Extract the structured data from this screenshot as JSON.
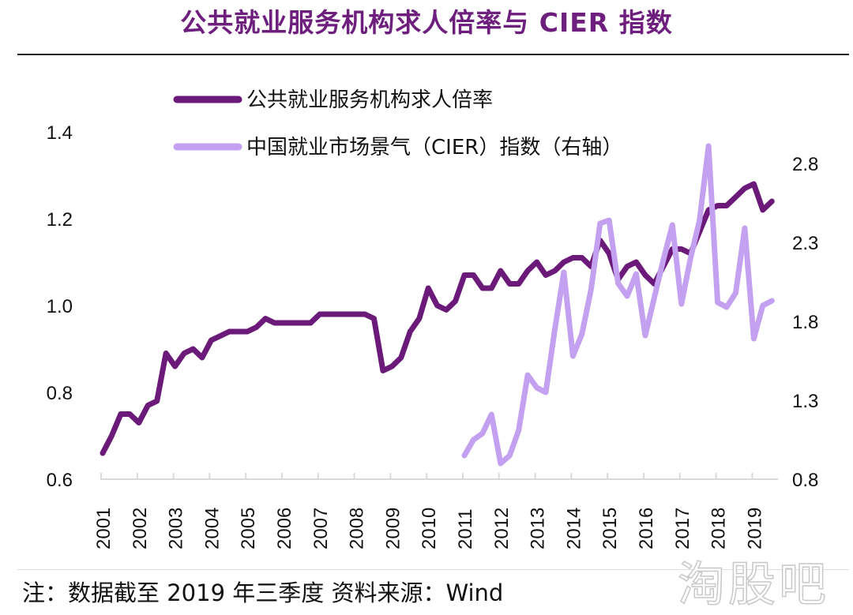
{
  "title": "公共就业服务机构求人倍率与 CIER 指数",
  "note": "注：数据截至 2019 年三季度 资料来源：Wind",
  "watermark": "淘股吧",
  "chart_data": {
    "type": "line",
    "title": "公共就业服务机构求人倍率与 CIER 指数",
    "frequency": "quarterly",
    "x_start": "2001Q1",
    "x_end": "2019Q3",
    "x_tick_labels": [
      "2001",
      "2002",
      "2003",
      "2004",
      "2005",
      "2006",
      "2007",
      "2008",
      "2009",
      "2010",
      "2011",
      "2012",
      "2013",
      "2014",
      "2015",
      "2016",
      "2017",
      "2018",
      "2019"
    ],
    "y_left": {
      "range": [
        0.6,
        1.4
      ],
      "ticks": [
        "0.6",
        "0.8",
        "1.0",
        "1.2",
        "1.4"
      ]
    },
    "y_right": {
      "range": [
        0.8,
        2.8
      ],
      "ticks": [
        "0.8",
        "1.3",
        "1.8",
        "2.3",
        "2.8"
      ]
    },
    "grid": false,
    "legend_placement": "top-left",
    "series": [
      {
        "name": "公共就业服务机构求人倍率",
        "axis": "left",
        "color": "#6b1a7a",
        "start": "2001Q1",
        "values": [
          0.66,
          0.7,
          0.75,
          0.75,
          0.73,
          0.77,
          0.78,
          0.89,
          0.86,
          0.89,
          0.9,
          0.88,
          0.92,
          0.93,
          0.94,
          0.94,
          0.94,
          0.95,
          0.97,
          0.96,
          0.96,
          0.96,
          0.96,
          0.96,
          0.98,
          0.98,
          0.98,
          0.98,
          0.98,
          0.98,
          0.97,
          0.85,
          0.86,
          0.88,
          0.94,
          0.97,
          1.04,
          1.0,
          0.99,
          1.01,
          1.07,
          1.07,
          1.04,
          1.04,
          1.08,
          1.05,
          1.05,
          1.08,
          1.1,
          1.07,
          1.08,
          1.1,
          1.11,
          1.11,
          1.09,
          1.15,
          1.12,
          1.06,
          1.09,
          1.1,
          1.07,
          1.05,
          1.09,
          1.13,
          1.13,
          1.12,
          1.17,
          1.22,
          1.23,
          1.23,
          1.25,
          1.27,
          1.28,
          1.22,
          1.24
        ]
      },
      {
        "name": "中国就业市场景气（CIER）指数（右轴）",
        "axis": "right",
        "color": "#c4a0f0",
        "start": "2011Q1",
        "values": [
          0.95,
          1.05,
          1.09,
          1.21,
          0.9,
          0.95,
          1.11,
          1.46,
          1.38,
          1.35,
          1.75,
          2.11,
          1.58,
          1.72,
          2.0,
          2.42,
          2.44,
          2.04,
          1.96,
          2.1,
          1.71,
          1.95,
          2.19,
          2.41,
          1.91,
          2.2,
          2.44,
          2.91,
          1.92,
          1.89,
          1.98,
          2.39,
          1.69,
          1.9,
          1.93
        ]
      }
    ]
  }
}
